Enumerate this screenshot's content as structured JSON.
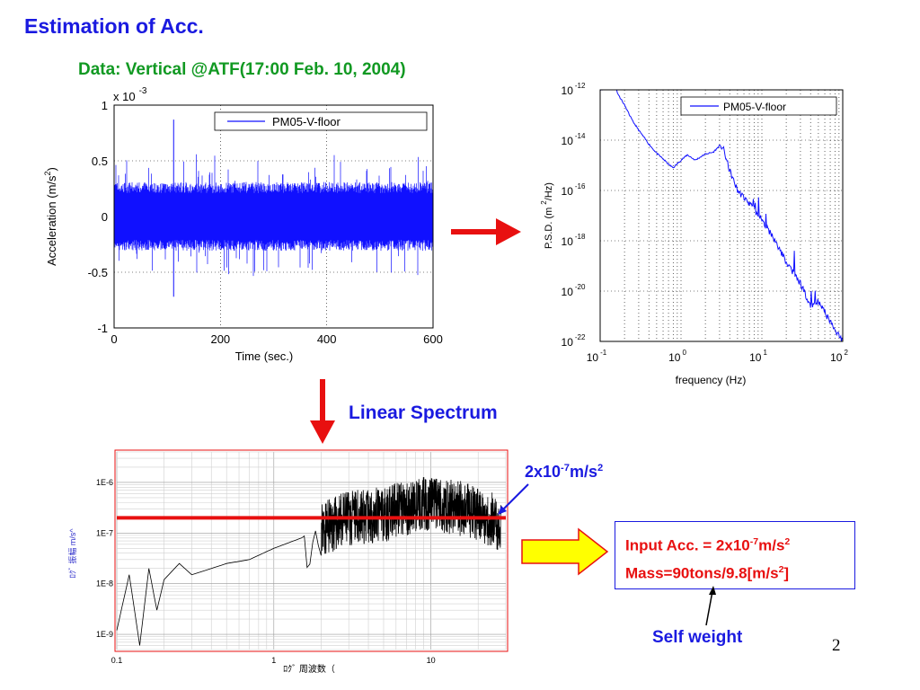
{
  "slide": {
    "title": "Estimation of Acc.",
    "subtitle": "Data: Vertical @ATF(17:00 Feb. 10, 2004)",
    "linear_spectrum_label": "Linear Spectrum",
    "level_label": {
      "base": "2x10",
      "exp": "-7",
      "unit": "m/s",
      "unit_exp": "2"
    },
    "input_acc": {
      "text": "Input Acc. = 2x10",
      "exp": "-7",
      "unit": "m/s",
      "unit_exp": "2"
    },
    "mass": {
      "text": "Mass=90tons/9.8[m/s",
      "exp": "2",
      "end": "]"
    },
    "self_weight": "Self weight",
    "page_number": "2",
    "colors": {
      "title": "#1a1ae0",
      "subtitle": "#119922",
      "arrow_red": "#e81010",
      "arrow_yellow": "#ffff00"
    }
  },
  "chart_data": [
    {
      "type": "line",
      "xlabel": "Time (sec.)",
      "ylabel": "Acceleration (m/s",
      "ylabel_exp": "2",
      "ylabel_end": ")",
      "y_multiplier": "x 10",
      "y_multiplier_exp": "-3",
      "xlim": [
        0,
        600
      ],
      "ylim": [
        -1,
        1
      ],
      "x_ticks": [
        "0",
        "200",
        "400",
        "600"
      ],
      "y_ticks": [
        "1",
        "0.5",
        "0",
        "-0.5",
        "-1"
      ],
      "grid": true,
      "legend": "top-right",
      "series": [
        {
          "name": "PM05-V-floor",
          "color": "#1010ff",
          "envelope": {
            "typical_amplitude": 0.28,
            "peak_amplitude": 0.55,
            "spikes": [
              {
                "x": 112,
                "y": 0.87
              },
              {
                "x": 112,
                "y": -0.72
              }
            ]
          }
        }
      ]
    },
    {
      "type": "line",
      "xlabel": "frequency (Hz)",
      "ylabel": "P.S.D. (m",
      "ylabel_exp": "2",
      "ylabel_end": "/Hz)",
      "x_scale": "log",
      "y_scale": "log",
      "xlim": [
        0.1,
        100
      ],
      "ylim": [
        1e-22,
        1e-12
      ],
      "x_ticks": [
        {
          "base": "10",
          "exp": "-1"
        },
        {
          "base": "10",
          "exp": "0"
        },
        {
          "base": "10",
          "exp": "1"
        },
        {
          "base": "10",
          "exp": "2"
        }
      ],
      "y_ticks": [
        {
          "base": "10",
          "exp": "-12"
        },
        {
          "base": "10",
          "exp": "-14"
        },
        {
          "base": "10",
          "exp": "-16"
        },
        {
          "base": "10",
          "exp": "-18"
        },
        {
          "base": "10",
          "exp": "-20"
        },
        {
          "base": "10",
          "exp": "-22"
        }
      ],
      "grid": true,
      "legend": "top-right",
      "series": [
        {
          "name": "PM05-V-floor",
          "color": "#1010ff",
          "x": [
            0.1,
            0.12,
            0.14,
            0.17,
            0.2,
            0.25,
            0.3,
            0.4,
            0.5,
            0.6,
            0.7,
            0.8,
            1.0,
            1.2,
            1.5,
            2.0,
            2.5,
            3.0,
            3.3,
            4.0,
            5.0,
            7.0,
            10,
            15,
            20,
            30,
            40,
            50,
            70,
            100
          ],
          "y": [
            1e-12,
            1.2e-12,
            2.5e-12,
            6e-13,
            2.5e-13,
            6e-14,
            2.5e-14,
            7e-15,
            3e-15,
            1.8e-15,
            1.1e-15,
            8e-16,
            1.6e-15,
            2.6e-15,
            1.6e-15,
            2.8e-15,
            3.3e-15,
            6e-15,
            5e-15,
            6e-16,
            1e-16,
            3e-17,
            7e-18,
            8e-19,
            1.5e-19,
            2e-20,
            2.5e-21,
            4e-21,
            6e-22,
            1e-22
          ]
        }
      ]
    },
    {
      "type": "line",
      "xlabel": "ﾛｸﾞ 周波数（",
      "ylabel": "ﾛｸﾞ 振幅 m/s^",
      "x_scale": "log",
      "y_scale": "log",
      "xlim": [
        0.1,
        30
      ],
      "ylim": [
        5e-10,
        4e-06
      ],
      "x_ticks": [
        "0.1",
        "1",
        "10"
      ],
      "y_ticks": [
        "1E-6",
        "1E-7",
        "1E-8",
        "1E-9"
      ],
      "grid": true,
      "series": [
        {
          "color": "#000000",
          "x": [
            0.1,
            0.12,
            0.14,
            0.16,
            0.18,
            0.2,
            0.25,
            0.3,
            0.4,
            0.5,
            0.7,
            1,
            1.5,
            2,
            3,
            5,
            7,
            10,
            15,
            20,
            28
          ],
          "y": [
            1.2e-09,
            1.5e-08,
            6e-10,
            2e-08,
            3e-09,
            1.2e-08,
            2.5e-08,
            1.5e-08,
            2e-08,
            2.5e-08,
            3e-08,
            5e-08,
            8e-08,
            1.5e-07,
            2.5e-07,
            3e-07,
            4e-07,
            5e-07,
            4e-07,
            3e-07,
            2e-07
          ]
        }
      ],
      "reference_line": {
        "y": 2e-07,
        "color": "#e81010"
      }
    }
  ]
}
